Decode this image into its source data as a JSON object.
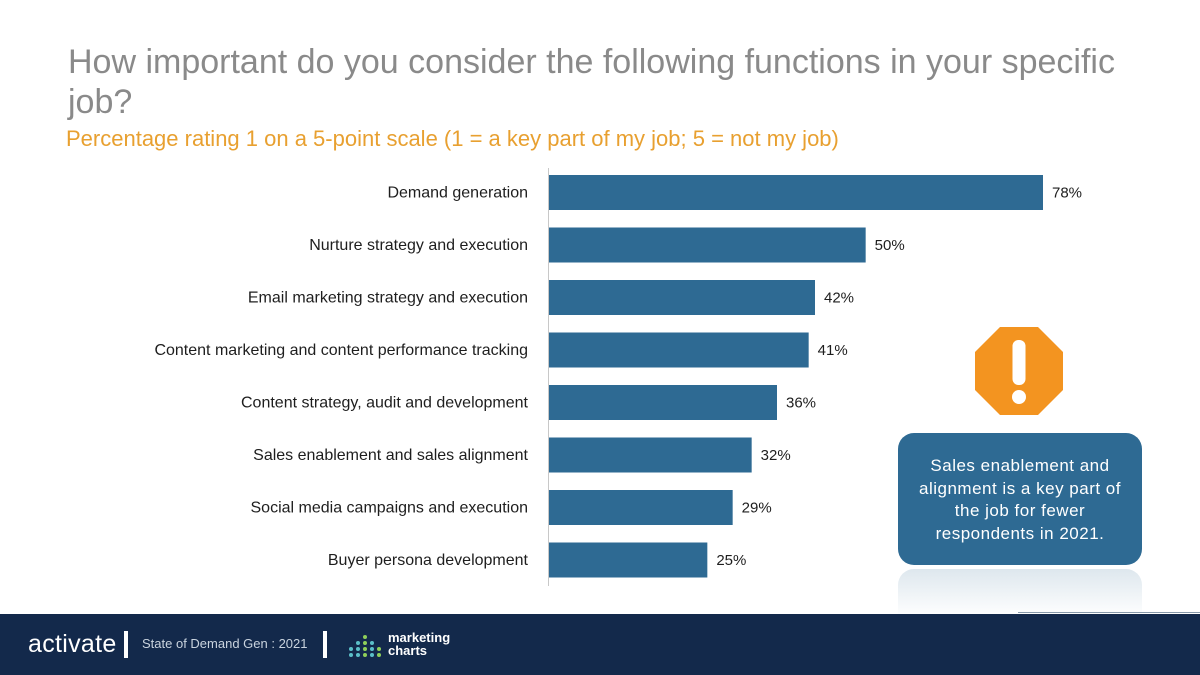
{
  "chart_data": {
    "type": "bar",
    "orientation": "horizontal",
    "title": "How important do you consider the following functions in your specific job?",
    "subtitle": "Percentage rating 1 on a 5-point scale (1 = a key part of my job; 5 = not my job)",
    "categories": [
      "Demand generation",
      "Nurture strategy and execution",
      "Email marketing strategy and execution",
      "Content marketing and content performance tracking",
      "Content strategy, audit and development",
      "Sales enablement and sales alignment",
      "Social media campaigns and execution",
      "Buyer persona development"
    ],
    "values": [
      78,
      50,
      42,
      41,
      36,
      32,
      29,
      25
    ],
    "value_labels": [
      "78%",
      "50%",
      "42%",
      "41%",
      "36%",
      "32%",
      "29%",
      "25%"
    ],
    "unit": "%",
    "xlim": [
      0,
      100
    ],
    "grid": false,
    "bar_color": "#2e6a93"
  },
  "callout": {
    "icon": "warning-octagon-icon",
    "icon_color": "#f39420",
    "text": "Sales enablement and alignment is a key part of the job for fewer respondents in 2021."
  },
  "footer": {
    "brand": "activate",
    "report": "State of Demand Gen : 2021",
    "partner_line1": "marketing",
    "partner_line2": "charts",
    "background": "#13294b"
  }
}
